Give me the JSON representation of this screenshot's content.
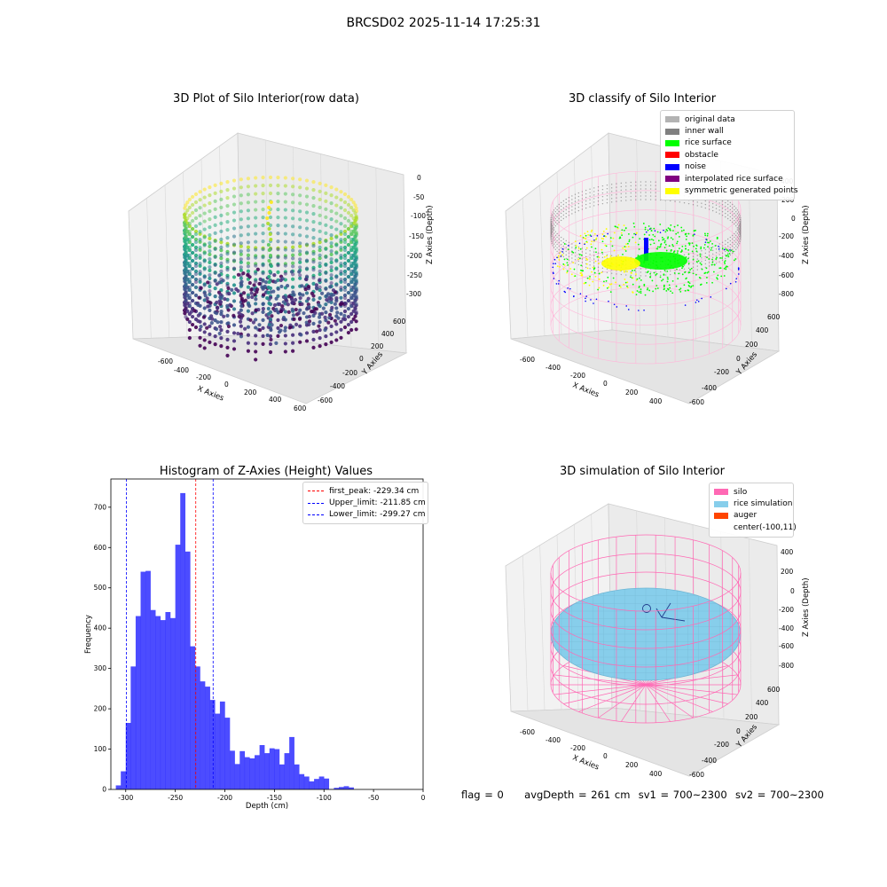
{
  "figure": {
    "title": "BRCSD02 2025-11-14 17:25:31"
  },
  "panels": {
    "raw": {
      "title": "3D Plot of Silo Interior(row data)",
      "xlabel": "X Axies",
      "ylabel": "Y Axies",
      "zlabel": "Z Axies (Depth)",
      "xticks": [
        "-600",
        "-400",
        "-200",
        "0",
        "200",
        "400",
        "600"
      ],
      "yticks": [
        "-600",
        "-400",
        "-200",
        "0",
        "200",
        "400",
        "600"
      ],
      "zticks": [
        "0",
        "-50",
        "-100",
        "-150",
        "-200",
        "-250",
        "-300"
      ]
    },
    "classify": {
      "title": "3D classify of Silo Interior",
      "xlabel": "X Axies",
      "ylabel": "Y Axies",
      "zlabel": "Z Axies (Depth)",
      "xticks": [
        "-600",
        "-400",
        "-200",
        "0",
        "200",
        "400"
      ],
      "yticks": [
        "-600",
        "-400",
        "-200",
        "0",
        "200",
        "400",
        "600"
      ],
      "zticks": [
        "400",
        "200",
        "0",
        "-200",
        "-400",
        "-600",
        "-800"
      ],
      "legend": [
        {
          "label": "original data",
          "color": "#b3b3b3"
        },
        {
          "label": "inner wall",
          "color": "#808080"
        },
        {
          "label": "rice surface",
          "color": "#00ff00"
        },
        {
          "label": "obstacle",
          "color": "#ff0000"
        },
        {
          "label": "noise",
          "color": "#0000ff"
        },
        {
          "label": "interpolated rice surface",
          "color": "#800080"
        },
        {
          "label": "symmetric generated points",
          "color": "#ffff00"
        }
      ]
    },
    "simulation": {
      "title": "3D simulation of Silo Interior",
      "xlabel": "X Axies",
      "ylabel": "Y Axies",
      "zlabel": "Z Axies (Depth)",
      "xticks": [
        "-600",
        "-400",
        "-200",
        "0",
        "200",
        "400"
      ],
      "yticks": [
        "-600",
        "-400",
        "-200",
        "0",
        "200",
        "400",
        "600"
      ],
      "zticks": [
        "400",
        "200",
        "0",
        "-200",
        "-400",
        "-600",
        "-800"
      ],
      "legend": [
        {
          "label": "silo",
          "color": "#ff69b4"
        },
        {
          "label": "rice simulation",
          "color": "#87ceeb"
        },
        {
          "label": "auger",
          "color": "#ff4500"
        },
        {
          "label": "center(-100,11)",
          "color": ""
        }
      ]
    }
  },
  "chart_data": [
    {
      "type": "bar",
      "title": "Histogram of Z-Axies (Height) Values",
      "xlabel": "Depth (cm)",
      "ylabel": "Frequency",
      "bar_color": "#0000ff",
      "xlim": [
        -315,
        0
      ],
      "ylim": [
        0,
        770
      ],
      "xticks": [
        -300,
        -250,
        -200,
        -150,
        -100,
        -50,
        0
      ],
      "yticks": [
        0,
        100,
        200,
        300,
        400,
        500,
        600,
        700
      ],
      "bin_width": 5,
      "bin_start": -310,
      "values": [
        10,
        45,
        165,
        305,
        430,
        540,
        542,
        445,
        430,
        420,
        440,
        425,
        607,
        735,
        590,
        355,
        305,
        268,
        255,
        222,
        188,
        218,
        178,
        96,
        63,
        95,
        80,
        77,
        85,
        110,
        90,
        102,
        100,
        62,
        90,
        130,
        62,
        38,
        32,
        20,
        26,
        32,
        27,
        1,
        4,
        6,
        8,
        5
      ],
      "vlines": [
        {
          "label": "first_peak: -229.34 cm",
          "x": -229.34,
          "color": "#ff0000"
        },
        {
          "label": "Upper_limit: -211.85 cm",
          "x": -211.85,
          "color": "#0000ff"
        },
        {
          "label": "Lower_limit: -299.27 cm",
          "x": -299.27,
          "color": "#0000ff"
        }
      ],
      "legend_position": "top-right"
    }
  ],
  "footer": {
    "flag": "flag = 0",
    "avg": "avgDepth = 261 cm",
    "sv1": "sv1 = 700~2300",
    "sv2": "sv2 = 700~2300"
  }
}
